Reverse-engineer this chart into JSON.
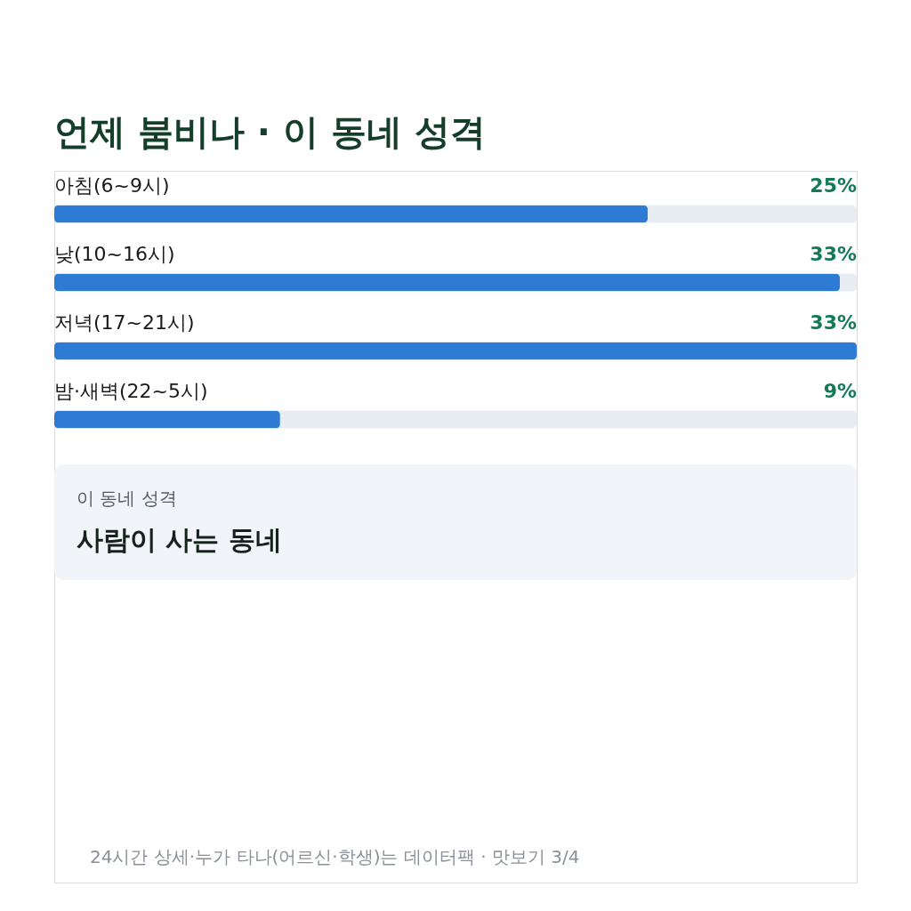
{
  "chart_data": {
    "type": "bar",
    "orientation": "horizontal",
    "title": "언제 붐비나 · 이 동네 성격",
    "categories": [
      "아침(6~9시)",
      "낮(10~16시)",
      "저녁(17~21시)",
      "밤·새벽(22~5시)"
    ],
    "values": [
      24.7,
      32.7,
      33.4,
      9.4
    ],
    "color": "#2e7bd4",
    "value_labels": [
      "25%",
      "33%",
      "33%",
      "9%"
    ],
    "annotations": [
      "이 동네 성격",
      "사람이 사는 동네",
      "24시간 상세·누가 타나(어르신·학생)는 데이터팩 · 맛보기 3/4"
    ],
    "data_labels": false
  }
}
